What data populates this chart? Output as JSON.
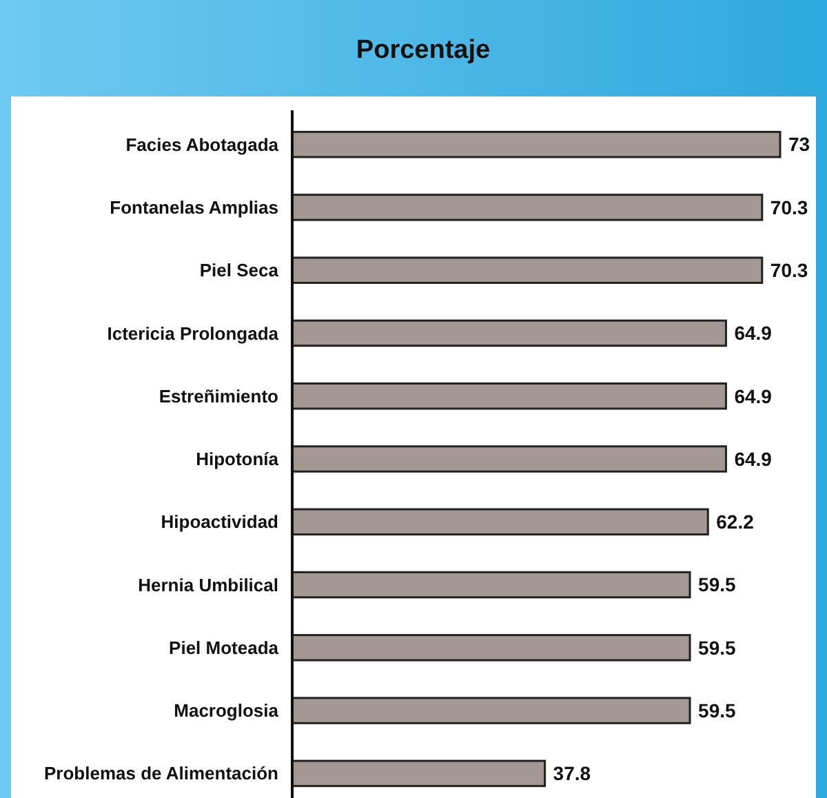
{
  "chart_data": {
    "type": "bar",
    "orientation": "horizontal",
    "title": "Porcentaje",
    "categories": [
      "Facies Abotagada",
      "Fontanelas Amplias",
      "Piel Seca",
      "Ictericia Prolongada",
      "Estreñimiento",
      "Hipotonía",
      "Hipoactividad",
      "Hernia Umbilical",
      "Piel Moteada",
      "Macroglosia",
      "Problemas de Alimentación"
    ],
    "values": [
      73,
      70.3,
      70.3,
      64.9,
      64.9,
      64.9,
      62.2,
      59.5,
      59.5,
      59.5,
      37.8
    ],
    "color": "#a39893",
    "data_labels": true,
    "tick_labels": "y"
  }
}
